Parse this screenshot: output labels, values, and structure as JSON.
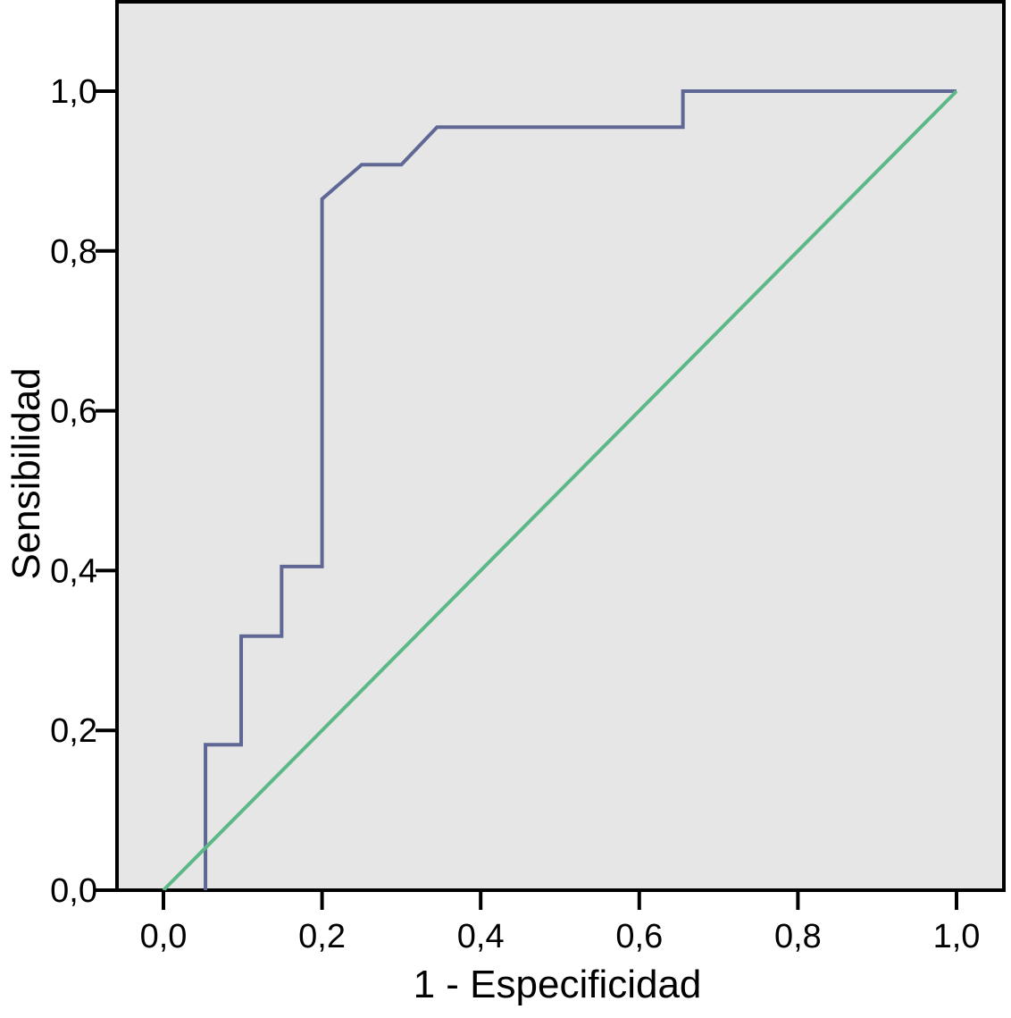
{
  "chart_data": {
    "type": "line",
    "title": "",
    "xlabel": "1 - Especificidad",
    "ylabel": "Sensibilidad",
    "xlim": [
      -0.06,
      1.05
    ],
    "ylim": [
      0.0,
      1.1
    ],
    "x_ticks": [
      "0,0",
      "0,2",
      "0,4",
      "0,6",
      "0,8",
      "1,0"
    ],
    "x_tick_values": [
      0.0,
      0.2,
      0.4,
      0.6,
      0.8,
      1.0
    ],
    "y_ticks": [
      "0,0",
      "0,2",
      "0,4",
      "0,6",
      "0,8",
      "1,0"
    ],
    "y_tick_values": [
      0.0,
      0.2,
      0.4,
      0.6,
      0.8,
      1.0
    ],
    "grid": false,
    "legend": "none",
    "plot_background": "#e6e6e6",
    "series": [
      {
        "color": "#5f6794",
        "points": [
          [
            0.053,
            0.0
          ],
          [
            0.053,
            0.182
          ],
          [
            0.098,
            0.182
          ],
          [
            0.098,
            0.318
          ],
          [
            0.149,
            0.318
          ],
          [
            0.149,
            0.405
          ],
          [
            0.2,
            0.405
          ],
          [
            0.2,
            0.865
          ],
          [
            0.25,
            0.908
          ],
          [
            0.3,
            0.908
          ],
          [
            0.345,
            0.955
          ],
          [
            0.655,
            0.955
          ],
          [
            0.655,
            1.0
          ],
          [
            1.0,
            1.0
          ]
        ]
      },
      {
        "color": "#5cb887",
        "points": [
          [
            0.0,
            0.0
          ],
          [
            1.0,
            1.0
          ]
        ]
      }
    ]
  }
}
